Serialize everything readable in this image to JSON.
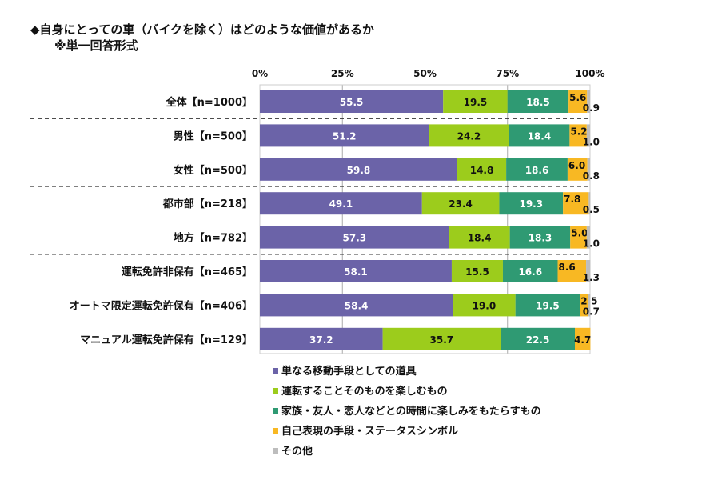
{
  "chart_data": {
    "type": "bar",
    "orientation": "horizontal-stacked-100",
    "title": "◆自身にとっての車（バイクを除く）はどのような価値があるか",
    "subtitle": "※単一回答形式",
    "x_ticks": [
      "0%",
      "25%",
      "50%",
      "75%",
      "100%"
    ],
    "xlim": [
      0,
      100
    ],
    "categories": [
      "全体【n=1000】",
      "男性【n=500】",
      "女性【n=500】",
      "都市部【n=218】",
      "地方【n=782】",
      "運転免許非保有【n=465】",
      "オートマ限定運転免許保有【n=406】",
      "マニュアル運転免許保有【n=129】"
    ],
    "group_separators_after": [
      0,
      2,
      4
    ],
    "series": [
      {
        "name": "単なる移動手段としての道具",
        "color": "#6b63a8",
        "values": [
          55.5,
          51.2,
          59.8,
          49.1,
          57.3,
          58.1,
          58.4,
          37.2
        ]
      },
      {
        "name": "運転することそのものを楽しむもの",
        "color": "#9ccc1c",
        "values": [
          19.5,
          24.2,
          14.8,
          23.4,
          18.4,
          15.5,
          19.0,
          35.7
        ]
      },
      {
        "name": "家族・友人・恋人などとの時間に楽しみをもたらすもの",
        "color": "#2f9a73",
        "values": [
          18.5,
          18.4,
          18.6,
          19.3,
          18.3,
          16.6,
          19.5,
          22.5
        ]
      },
      {
        "name": "自己表現の手段・ステータスシンボル",
        "color": "#f8b823",
        "values": [
          5.6,
          5.2,
          6.0,
          7.8,
          5.0,
          8.6,
          2.5,
          4.7
        ]
      },
      {
        "name": "その他",
        "color": "#bdbdbd",
        "values": [
          0.9,
          1.0,
          0.8,
          0.5,
          1.0,
          1.3,
          0.7,
          null
        ]
      }
    ],
    "legend": "bottom"
  }
}
